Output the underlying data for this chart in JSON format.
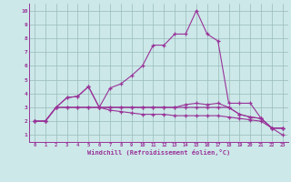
{
  "xlabel": "Windchill (Refroidissement éolien,°C)",
  "bg_color": "#cce8e8",
  "line_color": "#993399",
  "grid_color": "#99bbbb",
  "xlim": [
    -0.5,
    23.5
  ],
  "ylim": [
    0.5,
    10.5
  ],
  "xticks": [
    0,
    1,
    2,
    3,
    4,
    5,
    6,
    7,
    8,
    9,
    10,
    11,
    12,
    13,
    14,
    15,
    16,
    17,
    18,
    19,
    20,
    21,
    22,
    23
  ],
  "yticks": [
    1,
    2,
    3,
    4,
    5,
    6,
    7,
    8,
    9,
    10
  ],
  "line1_x": [
    0,
    1,
    2,
    3,
    4,
    5,
    6,
    7,
    8,
    9,
    10,
    11,
    12,
    13,
    14,
    15,
    16,
    17,
    18,
    19,
    20,
    21,
    22,
    23
  ],
  "line1_y": [
    2.0,
    2.0,
    3.0,
    3.7,
    3.8,
    4.5,
    3.0,
    4.4,
    4.7,
    5.3,
    6.0,
    7.5,
    7.5,
    8.3,
    8.3,
    10.0,
    8.3,
    7.8,
    3.3,
    3.3,
    3.3,
    2.2,
    1.5,
    1.5
  ],
  "line2_x": [
    0,
    1,
    2,
    3,
    4,
    5,
    6,
    7,
    8,
    9,
    10,
    11,
    12,
    13,
    14,
    15,
    16,
    17,
    18,
    19,
    20,
    21,
    22,
    23
  ],
  "line2_y": [
    2.0,
    2.0,
    3.0,
    3.7,
    3.8,
    4.5,
    3.0,
    3.0,
    3.0,
    3.0,
    3.0,
    3.0,
    3.0,
    3.0,
    3.2,
    3.3,
    3.2,
    3.3,
    3.0,
    2.5,
    2.3,
    2.2,
    1.5,
    1.5
  ],
  "line3_x": [
    0,
    1,
    2,
    3,
    4,
    5,
    6,
    7,
    8,
    9,
    10,
    11,
    12,
    13,
    14,
    15,
    16,
    17,
    18,
    19,
    20,
    21,
    22,
    23
  ],
  "line3_y": [
    2.0,
    2.0,
    3.0,
    3.0,
    3.0,
    3.0,
    3.0,
    3.0,
    3.0,
    3.0,
    3.0,
    3.0,
    3.0,
    3.0,
    3.0,
    3.0,
    3.0,
    3.0,
    3.0,
    2.5,
    2.3,
    2.2,
    1.5,
    1.0
  ],
  "line4_x": [
    0,
    1,
    2,
    3,
    4,
    5,
    6,
    7,
    8,
    9,
    10,
    11,
    12,
    13,
    14,
    15,
    16,
    17,
    18,
    19,
    20,
    21,
    22,
    23
  ],
  "line4_y": [
    2.0,
    2.0,
    3.0,
    3.0,
    3.0,
    3.0,
    3.0,
    2.8,
    2.7,
    2.6,
    2.5,
    2.5,
    2.5,
    2.4,
    2.4,
    2.4,
    2.4,
    2.4,
    2.3,
    2.2,
    2.1,
    2.0,
    1.5,
    1.5
  ]
}
